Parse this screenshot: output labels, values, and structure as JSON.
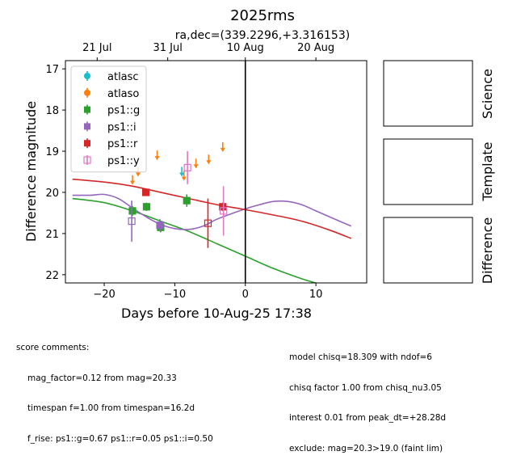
{
  "chart_data": {
    "type": "scatter",
    "title": "2025rms",
    "top_axis_label": "ra,dec=(339.2296,+3.316153)",
    "xlabel": "Days before 10-Aug-25 17:38",
    "ylabel": "Difference magnitude",
    "xlim": [
      -25.5,
      17.2
    ],
    "ylim": [
      22.2,
      16.8
    ],
    "inverted_y": true,
    "x_ticks": [
      -20,
      -10,
      0,
      10
    ],
    "y_ticks": [
      17,
      18,
      19,
      20,
      21,
      22
    ],
    "top_ticks": [
      {
        "x": -21.0,
        "label": "21 Jul"
      },
      {
        "x": -11.0,
        "label": "31 Jul"
      },
      {
        "x": 0.0,
        "label": "10 Aug"
      },
      {
        "x": 10.0,
        "label": "20 Aug"
      }
    ],
    "vline_x": 0,
    "legend_position": "upper-left",
    "legend": [
      {
        "label": "atlasc",
        "color": "#17becf",
        "marker": "circle"
      },
      {
        "label": "atlaso",
        "color": "#ff7f0e",
        "marker": "circle"
      },
      {
        "label": "ps1::g",
        "color": "#2ca02c",
        "marker": "square"
      },
      {
        "label": "ps1::i",
        "color": "#9467bd",
        "marker": "square"
      },
      {
        "label": "ps1::r",
        "color": "#d62728",
        "marker": "square"
      },
      {
        "label": "ps1::y",
        "color": "#e377c2",
        "marker": "square-open"
      }
    ],
    "detections": [
      {
        "series": "ps1::g",
        "color": "#2ca02c",
        "x": -16.0,
        "y": 20.45,
        "err": 0.12,
        "open": false
      },
      {
        "series": "ps1::g",
        "color": "#2ca02c",
        "x": -14.0,
        "y": 20.35,
        "err": 0.1,
        "open": false
      },
      {
        "series": "ps1::g",
        "color": "#2ca02c",
        "x": -12.0,
        "y": 20.85,
        "err": 0.12,
        "open": false
      },
      {
        "series": "ps1::g",
        "color": "#2ca02c",
        "x": -8.3,
        "y": 20.2,
        "err": 0.15,
        "open": false
      },
      {
        "series": "ps1::i",
        "color": "#9467bd",
        "x": -16.1,
        "y": 20.7,
        "err": 0.5,
        "open": true
      },
      {
        "series": "ps1::i",
        "color": "#9467bd",
        "x": -12.1,
        "y": 20.8,
        "err": 0.15,
        "open": false
      },
      {
        "series": "ps1::r",
        "color": "#d62728",
        "x": -14.1,
        "y": 20.0,
        "err": 0.08,
        "open": false
      },
      {
        "series": "ps1::r",
        "color": "#d62728",
        "x": -5.3,
        "y": 20.75,
        "err": 0.6,
        "open": true
      },
      {
        "series": "ps1::r",
        "color": "#d62728",
        "x": -3.2,
        "y": 20.35,
        "err": 0.1,
        "open": false
      },
      {
        "series": "ps1::y",
        "color": "#e377c2",
        "x": -8.2,
        "y": 19.4,
        "err": 0.4,
        "open": true
      },
      {
        "series": "ps1::y",
        "color": "#e377c2",
        "x": -3.1,
        "y": 20.45,
        "err": 0.6,
        "open": true
      }
    ],
    "upper_limits": [
      {
        "series": "atlaso",
        "color": "#ff7f0e",
        "x": -16.0,
        "y": 19.7
      },
      {
        "series": "atlaso",
        "color": "#ff7f0e",
        "x": -15.2,
        "y": 19.5
      },
      {
        "series": "atlaso",
        "color": "#ff7f0e",
        "x": -12.5,
        "y": 19.1
      },
      {
        "series": "atlaso",
        "color": "#ff7f0e",
        "x": -8.7,
        "y": 19.6
      },
      {
        "series": "atlaso",
        "color": "#ff7f0e",
        "x": -7.0,
        "y": 19.3
      },
      {
        "series": "atlaso",
        "color": "#ff7f0e",
        "x": -5.2,
        "y": 19.2
      },
      {
        "series": "atlaso",
        "color": "#ff7f0e",
        "x": -3.2,
        "y": 18.9
      },
      {
        "series": "atlasc",
        "color": "#17becf",
        "x": -9.0,
        "y": 19.5
      }
    ],
    "model_curves": [
      {
        "series": "ps1::g",
        "color": "#2ca02c",
        "x": [
          -24.5,
          -20,
          -16,
          -12,
          -8,
          -4,
          0,
          4,
          8,
          10
        ],
        "y": [
          20.15,
          20.25,
          20.45,
          20.7,
          20.95,
          21.25,
          21.55,
          21.85,
          22.1,
          22.2
        ]
      },
      {
        "series": "ps1::i",
        "color": "#9467bd",
        "x": [
          -24.5,
          -22,
          -20,
          -18,
          -16,
          -14,
          -12,
          -10,
          -8,
          -6,
          -4,
          -2,
          0,
          2,
          4,
          6,
          8,
          10,
          12,
          15
        ],
        "y": [
          20.07,
          20.07,
          20.05,
          20.15,
          20.38,
          20.6,
          20.78,
          20.88,
          20.9,
          20.82,
          20.65,
          20.52,
          20.4,
          20.3,
          20.22,
          20.22,
          20.3,
          20.45,
          20.6,
          20.82
        ]
      },
      {
        "series": "ps1::r",
        "color": "#d62728",
        "x": [
          -24.5,
          -20,
          -16,
          -12,
          -8,
          -4,
          0,
          4,
          8,
          12,
          15
        ],
        "y": [
          19.68,
          19.75,
          19.85,
          20.0,
          20.15,
          20.3,
          20.42,
          20.55,
          20.7,
          20.92,
          21.12
        ]
      }
    ]
  },
  "side_panels": {
    "science_label": "Science",
    "template_label": "Template",
    "difference_label": "Difference"
  },
  "comments": {
    "heading": "score comments:",
    "left_lines": [
      "mag_factor=0.12 from mag=20.33",
      "timespan f=1.00 from timespan=16.2d",
      "f_rise: ps1::g=0.67 ps1::r=0.05 ps1::i=0.50"
    ],
    "right_lines": [
      "model chisq=18.309 with ndof=6",
      "chisq factor 1.00 from chisq_nu3.05",
      "interest 0.01 from peak_dt=+28.28d",
      "exclude: mag=20.3>19.0 (faint lim)"
    ]
  }
}
